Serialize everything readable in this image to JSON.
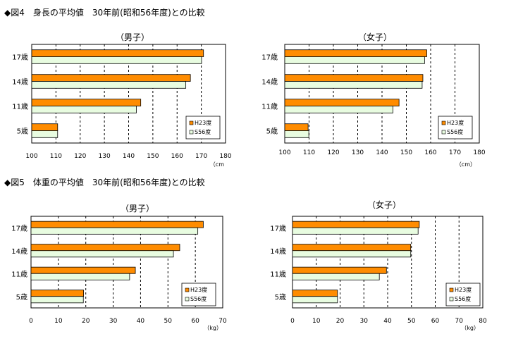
{
  "figure_titles": [
    "◆図4　身長の平均値　30年前(昭和56年度)との比較",
    "◆図5　体重の平均値　30年前(昭和56年度)との比較"
  ],
  "colors": {
    "h23": "#ff8c00",
    "s56": "#e8fce0",
    "bar_stroke": "#000000",
    "grid": "#000000"
  },
  "chart_data": [
    {
      "type": "bar",
      "orientation": "horizontal",
      "title": "（男子）",
      "categories": [
        "17歳",
        "14歳",
        "11歳",
        "5歳"
      ],
      "series": [
        {
          "name": "H23度",
          "values": [
            170.9,
            165.5,
            145.0,
            110.7
          ]
        },
        {
          "name": "S56度",
          "values": [
            170.1,
            163.6,
            143.2,
            110.7
          ]
        }
      ],
      "xlim": [
        100,
        180
      ],
      "xticks": [
        "100",
        "110",
        "120",
        "130",
        "140",
        "150",
        "160",
        "170",
        "180"
      ],
      "unit": "（cm",
      "legend": "bottom-right"
    },
    {
      "type": "bar",
      "orientation": "horizontal",
      "title": "（女子）",
      "categories": [
        "17歳",
        "14歳",
        "11歳",
        "5歳"
      ],
      "series": [
        {
          "name": "H23度",
          "values": [
            158.4,
            156.8,
            147.0,
            109.6
          ]
        },
        {
          "name": "S56度",
          "values": [
            157.5,
            156.5,
            144.5,
            109.9
          ]
        }
      ],
      "xlim": [
        100,
        180
      ],
      "xticks": [
        "100",
        "110",
        "120",
        "130",
        "140",
        "150",
        "160",
        "170",
        "180"
      ],
      "unit": "（cm）",
      "legend": "bottom-right"
    },
    {
      "type": "bar",
      "orientation": "horizontal",
      "title": "（男子）",
      "categories": [
        "17歳",
        "14歳",
        "11歳",
        "5歳"
      ],
      "series": [
        {
          "name": "H23度",
          "values": [
            62.9,
            54.3,
            38.1,
            19.2
          ]
        },
        {
          "name": "S56度",
          "values": [
            60.9,
            52.0,
            36.0,
            19.1
          ]
        }
      ],
      "xlim": [
        0,
        70
      ],
      "xticks": [
        "0",
        "10",
        "20",
        "30",
        "40",
        "50",
        "60",
        "70"
      ],
      "unit": "（kg）",
      "legend": "bottom-right"
    },
    {
      "type": "bar",
      "orientation": "horizontal",
      "title": "（女子）",
      "categories": [
        "17歳",
        "14歳",
        "11歳",
        "5歳"
      ],
      "series": [
        {
          "name": "H23度",
          "values": [
            53.3,
            49.7,
            39.5,
            18.9
          ]
        },
        {
          "name": "S56度",
          "values": [
            52.8,
            49.7,
            36.5,
            18.9
          ]
        }
      ],
      "xlim": [
        0,
        80
      ],
      "xticks": [
        "0",
        "10",
        "20",
        "30",
        "40",
        "50",
        "60",
        "70",
        "80"
      ],
      "unit": "（kg）",
      "legend": "bottom-right"
    }
  ]
}
